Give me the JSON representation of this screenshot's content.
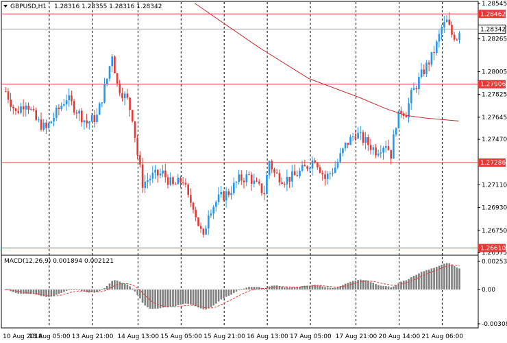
{
  "header": {
    "symbol": "GBPUSD,H1",
    "ohlc": "1.28316 1.28355 1.28316 1.28342"
  },
  "macd_header": {
    "label": "MACD(12,26,9) 0.001894 0.002121"
  },
  "colors": {
    "bull": "#2196F3",
    "bear": "#E53935",
    "level_line": "#E53935",
    "ma_line": "#C62828",
    "macd_bar": "#808080",
    "signal_line": "#E53935",
    "grid": "#000000",
    "current_price_tag": "#ffffff"
  },
  "chart_data": [
    {
      "type": "candlestick",
      "title": "GBPUSD,H1",
      "ylim": [
        1.26575,
        1.28545
      ],
      "y_ticks": [
        "1.28545",
        "1.28265",
        "1.28005",
        "1.27825",
        "1.27645",
        "1.27470",
        "1.27110",
        "1.26930",
        "1.26750",
        "1.26575"
      ],
      "x_ticks": [
        "10 Aug 2018",
        "13 Aug 05:00",
        "13 Aug 21:00",
        "14 Aug 13:00",
        "15 Aug 05:00",
        "15 Aug 21:00",
        "16 Aug 13:00",
        "17 Aug 05:00",
        "17 Aug 21:00",
        "20 Aug 14:00",
        "21 Aug 06:00"
      ],
      "horizontal_levels": [
        {
          "value": 1.28462,
          "label": "1.28462"
        },
        {
          "value": 1.27906,
          "label": "1.27906"
        },
        {
          "value": 1.27286,
          "label": "1.27286"
        },
        {
          "value": 1.2661,
          "label": "1.26610"
        }
      ],
      "current_price": {
        "value": 1.28342,
        "label": "1.28342"
      },
      "close_path": [
        [
          0,
          1.2785
        ],
        [
          4,
          1.2768
        ],
        [
          8,
          1.2777
        ],
        [
          12,
          1.2762
        ],
        [
          16,
          1.2755
        ],
        [
          20,
          1.2768
        ],
        [
          24,
          1.278
        ],
        [
          28,
          1.277
        ],
        [
          32,
          1.276
        ],
        [
          36,
          1.2765
        ],
        [
          40,
          1.2795
        ],
        [
          42,
          1.2815
        ],
        [
          44,
          1.279
        ],
        [
          48,
          1.2778
        ],
        [
          50,
          1.2765
        ],
        [
          52,
          1.2735
        ],
        [
          54,
          1.2712
        ],
        [
          58,
          1.2718
        ],
        [
          62,
          1.272
        ],
        [
          66,
          1.271
        ],
        [
          70,
          1.2715
        ],
        [
          72,
          1.27
        ],
        [
          74,
          1.2695
        ],
        [
          76,
          1.268
        ],
        [
          78,
          1.2668
        ],
        [
          80,
          1.269
        ],
        [
          84,
          1.27
        ],
        [
          88,
          1.2705
        ],
        [
          92,
          1.2715
        ],
        [
          96,
          1.2718
        ],
        [
          98,
          1.2712
        ],
        [
          102,
          1.2705
        ],
        [
          104,
          1.273
        ],
        [
          106,
          1.272
        ],
        [
          110,
          1.2715
        ],
        [
          114,
          1.2718
        ],
        [
          118,
          1.2724
        ],
        [
          122,
          1.2732
        ],
        [
          126,
          1.2716
        ],
        [
          130,
          1.2725
        ],
        [
          134,
          1.2742
        ],
        [
          138,
          1.2752
        ],
        [
          142,
          1.2745
        ],
        [
          146,
          1.2738
        ],
        [
          150,
          1.2744
        ],
        [
          152,
          1.2735
        ],
        [
          154,
          1.276
        ],
        [
          156,
          1.277
        ],
        [
          158,
          1.2768
        ],
        [
          160,
          1.2782
        ],
        [
          162,
          1.279
        ],
        [
          164,
          1.2798
        ],
        [
          166,
          1.2805
        ],
        [
          168,
          1.2812
        ],
        [
          170,
          1.2822
        ],
        [
          172,
          1.2835
        ],
        [
          174,
          1.284
        ],
        [
          176,
          1.283
        ],
        [
          178,
          1.2828
        ],
        [
          179,
          1.2834
        ]
      ],
      "moving_average": [
        [
          75,
          1.28545
        ],
        [
          100,
          1.282
        ],
        [
          120,
          1.2795
        ],
        [
          140,
          1.278
        ],
        [
          150,
          1.27715
        ],
        [
          158,
          1.2766
        ],
        [
          166,
          1.27638
        ],
        [
          179,
          1.27615
        ]
      ]
    },
    {
      "type": "histogram",
      "title": "MACD(12,26,9)",
      "ylim": [
        -0.00308,
        0.002533
      ],
      "y_ticks": [
        "0.002533",
        "0.00",
        "-0.00308"
      ],
      "main": 0.001894,
      "signal": 0.002121
    }
  ]
}
